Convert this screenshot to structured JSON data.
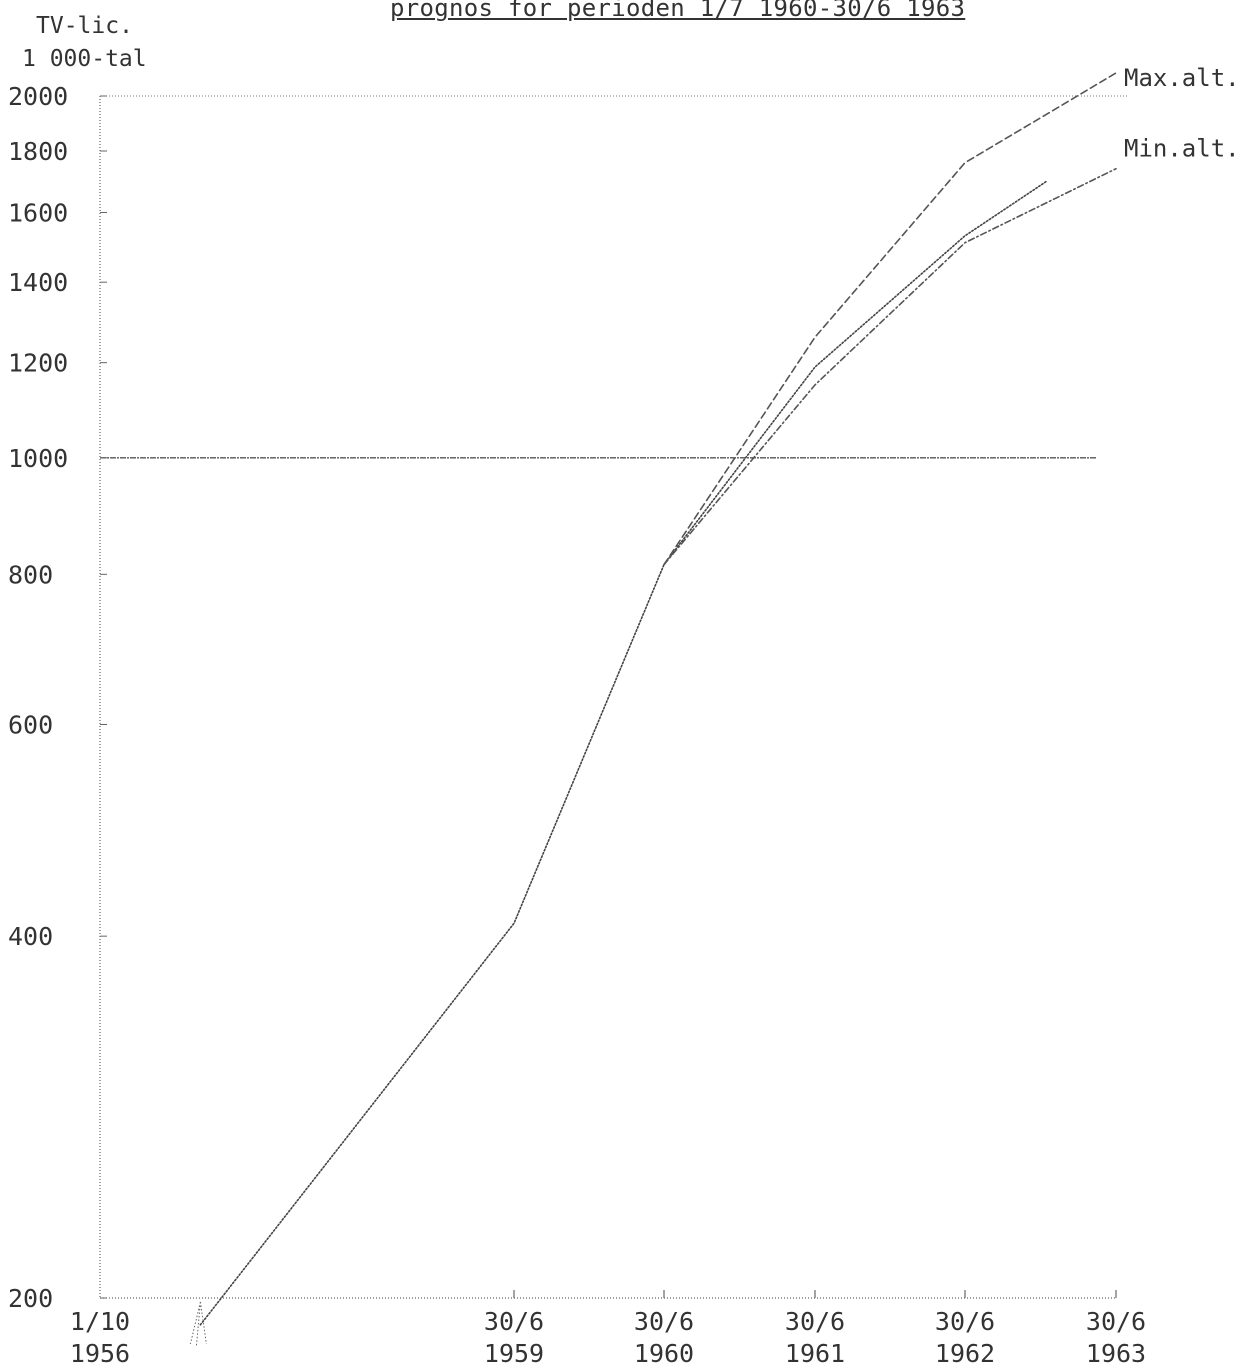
{
  "chart_data": {
    "type": "line",
    "title": "prognos för perioden 1/7 1960-30/6 1963",
    "ylabel": [
      "TV-lic.",
      "1 000-tal"
    ],
    "yscale": "log",
    "ylim": [
      200,
      2000
    ],
    "yticks": [
      200,
      400,
      600,
      800,
      1000,
      1200,
      1400,
      1600,
      1800,
      2000
    ],
    "xticks": [
      {
        "x": "1956-10-01",
        "line1": "1/10",
        "line2": "1956"
      },
      {
        "x": "1959-06-30",
        "line1": "30/6",
        "line2": "1959"
      },
      {
        "x": "1960-06-30",
        "line1": "30/6",
        "line2": "1960"
      },
      {
        "x": "1961-06-30",
        "line1": "30/6",
        "line2": "1961"
      },
      {
        "x": "1962-06-30",
        "line1": "30/6",
        "line2": "1962"
      },
      {
        "x": "1963-06-30",
        "line1": "30/6",
        "line2": "1963"
      }
    ],
    "gridlines": [
      1000,
      2000
    ],
    "series": [
      {
        "name": "",
        "style": "dotted",
        "points": [
          {
            "x": "1957-06-01",
            "y": 190
          },
          {
            "x": "1959-06-30",
            "y": 410
          },
          {
            "x": "1960-06-30",
            "y": 815
          },
          {
            "x": "1961-06-30",
            "y": 1190
          },
          {
            "x": "1962-06-30",
            "y": 1530
          },
          {
            "x": "1963-01-15",
            "y": 1700
          }
        ]
      },
      {
        "name": "Max.alt.",
        "style": "dashed",
        "points": [
          {
            "x": "1960-06-30",
            "y": 815
          },
          {
            "x": "1961-06-30",
            "y": 1260
          },
          {
            "x": "1962-06-30",
            "y": 1760
          },
          {
            "x": "1963-06-30",
            "y": 2090
          }
        ]
      },
      {
        "name": "Min.alt.",
        "style": "dashdot",
        "points": [
          {
            "x": "1960-06-30",
            "y": 815
          },
          {
            "x": "1961-06-30",
            "y": 1150
          },
          {
            "x": "1962-06-30",
            "y": 1510
          },
          {
            "x": "1963-06-30",
            "y": 1740
          }
        ]
      }
    ]
  }
}
